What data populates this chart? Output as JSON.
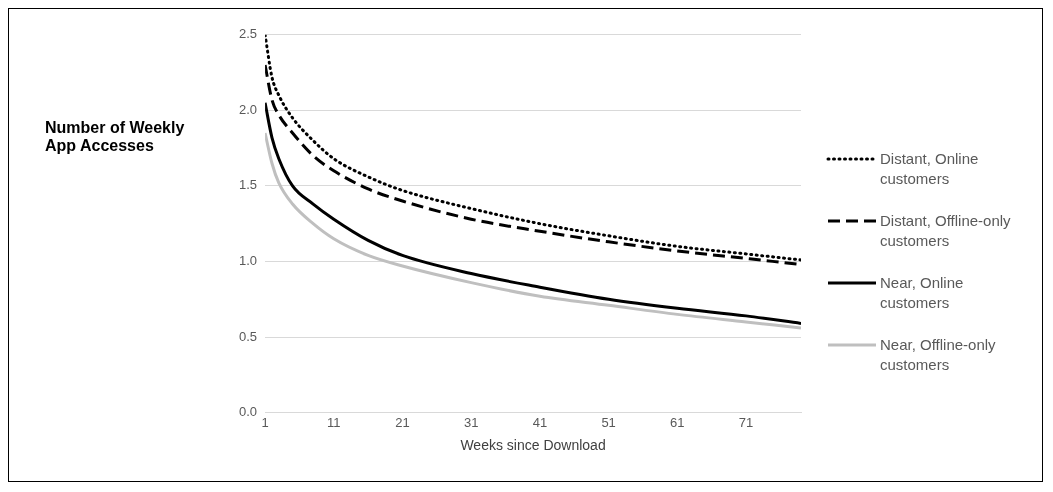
{
  "chart_data": {
    "type": "line",
    "xlabel": "Weeks since Download",
    "ylabel": "Number of Weekly App Accesses",
    "xlim": [
      1,
      79
    ],
    "xticks": [
      1,
      11,
      21,
      31,
      41,
      51,
      61,
      71
    ],
    "ylim": [
      0,
      2.5
    ],
    "yticks": [
      {
        "value": 0,
        "label": "0.0"
      },
      {
        "value": 0.5,
        "label": "0.5"
      },
      {
        "value": 1,
        "label": "1.0"
      },
      {
        "value": 1.5,
        "label": "1.5"
      },
      {
        "value": 2,
        "label": "2.0"
      },
      {
        "value": 2.5,
        "label": "2.5"
      }
    ],
    "x": [
      1,
      2,
      3,
      5,
      8,
      11,
      16,
      21,
      31,
      41,
      51,
      61,
      71,
      79
    ],
    "grid": "y",
    "legend": "right",
    "marker": "none",
    "series": [
      {
        "name": "Distant, Online customers",
        "color": "#000000",
        "line_style": "dotted",
        "values": [
          2.5,
          2.22,
          2.1,
          1.95,
          1.8,
          1.68,
          1.56,
          1.47,
          1.35,
          1.25,
          1.17,
          1.1,
          1.05,
          1.01
        ]
      },
      {
        "name": "Distant, Offline-only customers",
        "color": "#000000",
        "line_style": "dashed",
        "values": [
          2.3,
          2.07,
          1.97,
          1.85,
          1.7,
          1.6,
          1.48,
          1.4,
          1.28,
          1.2,
          1.13,
          1.07,
          1.02,
          0.98
        ]
      },
      {
        "name": "Near, Online customers",
        "color": "#000000",
        "line_style": "solid",
        "values": [
          2.05,
          1.82,
          1.68,
          1.5,
          1.38,
          1.28,
          1.14,
          1.04,
          0.92,
          0.83,
          0.75,
          0.69,
          0.64,
          0.59
        ]
      },
      {
        "name": "Near, Offline-only customers",
        "color": "#bfbfbf",
        "line_style": "solid",
        "values": [
          1.85,
          1.65,
          1.52,
          1.38,
          1.25,
          1.15,
          1.04,
          0.97,
          0.86,
          0.77,
          0.71,
          0.65,
          0.6,
          0.56
        ]
      }
    ]
  }
}
